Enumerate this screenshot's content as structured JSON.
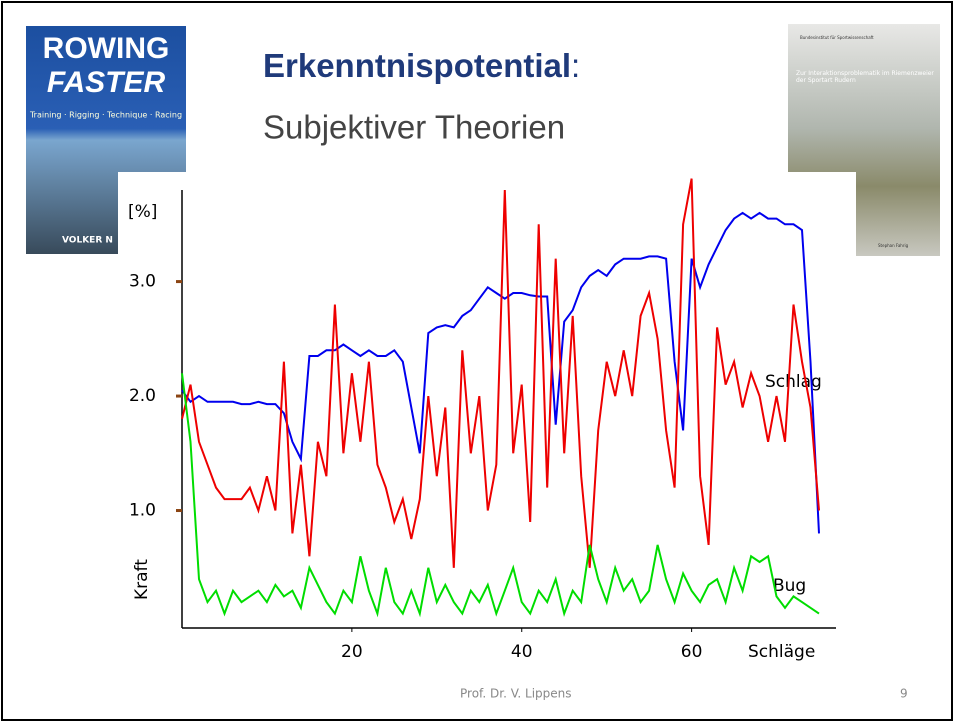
{
  "slide": {
    "title": "Erkenntnispotential",
    "title_colon": ":",
    "subtitle": "Subjektiver Theorien",
    "footer": "Prof. Dr. V. Lippens",
    "page": "9"
  },
  "covers": {
    "left": {
      "title1": "ROWING",
      "title2": "FASTER",
      "tagline": "Training · Rigging · Technique · Racing",
      "author": "VOLKER N"
    },
    "right": {
      "publisher": "Bundesinstitut für Sportwissenschaft",
      "title": "Zur Interaktionsproblematik im Riemenzweier der Sportart Rudern",
      "author": "Stephan Fahrig"
    }
  },
  "chart_data": {
    "type": "line",
    "y_label_top": "[%]",
    "y_label": "Kraft",
    "x_label": "Schläge",
    "annotations": [
      {
        "text": "Schlag"
      },
      {
        "text": "Bug"
      }
    ],
    "x": [
      0,
      1,
      2,
      3,
      4,
      5,
      6,
      7,
      8,
      9,
      10,
      11,
      12,
      13,
      14,
      15,
      16,
      17,
      18,
      19,
      20,
      21,
      22,
      23,
      24,
      25,
      26,
      27,
      28,
      29,
      30,
      31,
      32,
      33,
      34,
      35,
      36,
      37,
      38,
      39,
      40,
      41,
      42,
      43,
      44,
      45,
      46,
      47,
      48,
      49,
      50,
      51,
      52,
      53,
      54,
      55,
      56,
      57,
      58,
      59,
      60,
      61,
      62,
      63,
      64,
      65,
      66,
      67,
      68,
      69,
      70,
      71,
      72,
      73,
      74,
      75
    ],
    "series": [
      {
        "color": "#0000ee",
        "values": [
          2.05,
          1.95,
          2.0,
          1.95,
          1.95,
          1.95,
          1.95,
          1.93,
          1.93,
          1.95,
          1.93,
          1.93,
          1.85,
          1.6,
          1.45,
          2.35,
          2.35,
          2.4,
          2.4,
          2.45,
          2.4,
          2.35,
          2.4,
          2.35,
          2.35,
          2.4,
          2.3,
          1.9,
          1.5,
          2.55,
          2.6,
          2.62,
          2.6,
          2.7,
          2.75,
          2.85,
          2.95,
          2.9,
          2.85,
          2.9,
          2.9,
          2.88,
          2.87,
          2.87,
          1.75,
          2.65,
          2.75,
          2.95,
          3.05,
          3.1,
          3.05,
          3.15,
          3.2,
          3.2,
          3.2,
          3.22,
          3.22,
          3.2,
          2.3,
          1.7,
          3.2,
          2.95,
          3.15,
          3.3,
          3.45,
          3.55,
          3.6,
          3.55,
          3.6,
          3.55,
          3.55,
          3.5,
          3.5,
          3.45,
          2.3,
          0.8
        ]
      },
      {
        "color": "#ee0000",
        "values": [
          1.8,
          2.1,
          1.6,
          1.4,
          1.2,
          1.1,
          1.1,
          1.1,
          1.2,
          1.0,
          1.3,
          1.0,
          2.3,
          0.8,
          1.4,
          0.6,
          1.6,
          1.3,
          2.8,
          1.5,
          2.2,
          1.6,
          2.3,
          1.4,
          1.2,
          0.9,
          1.1,
          0.75,
          1.1,
          2.0,
          1.3,
          1.9,
          0.5,
          2.4,
          1.5,
          2.0,
          1.0,
          1.4,
          3.8,
          1.5,
          2.1,
          0.9,
          3.5,
          1.2,
          3.2,
          1.5,
          2.7,
          1.3,
          0.5,
          1.7,
          2.3,
          2.0,
          2.4,
          2.0,
          2.7,
          2.9,
          2.5,
          1.7,
          1.2,
          3.5,
          3.9,
          1.3,
          0.7,
          2.6,
          2.1,
          2.3,
          1.9,
          2.2,
          2.0,
          1.6,
          2.0,
          1.6,
          2.8,
          2.3,
          1.9,
          1.0
        ]
      },
      {
        "color": "#00dd00",
        "values": [
          2.2,
          1.6,
          0.4,
          0.2,
          0.3,
          0.1,
          0.3,
          0.2,
          0.25,
          0.3,
          0.2,
          0.35,
          0.25,
          0.3,
          0.15,
          0.5,
          0.35,
          0.2,
          0.1,
          0.3,
          0.2,
          0.6,
          0.3,
          0.1,
          0.5,
          0.2,
          0.1,
          0.3,
          0.1,
          0.5,
          0.2,
          0.35,
          0.2,
          0.1,
          0.3,
          0.2,
          0.35,
          0.1,
          0.3,
          0.5,
          0.2,
          0.1,
          0.3,
          0.2,
          0.4,
          0.1,
          0.3,
          0.2,
          0.7,
          0.4,
          0.2,
          0.5,
          0.3,
          0.4,
          0.2,
          0.3,
          0.7,
          0.4,
          0.2,
          0.45,
          0.3,
          0.2,
          0.35,
          0.4,
          0.2,
          0.5,
          0.3,
          0.6,
          0.55,
          0.6,
          0.25,
          0.15,
          0.25,
          0.2,
          0.15,
          0.1
        ]
      }
    ],
    "xlim": [
      0,
      77
    ],
    "ylim": [
      0,
      3.8
    ],
    "xticks": [
      20,
      40,
      60
    ],
    "yticks": [
      {
        "value": 1,
        "label": "1.0"
      },
      {
        "value": 2,
        "label": "2.0"
      },
      {
        "value": 3,
        "label": "3.0"
      }
    ]
  }
}
